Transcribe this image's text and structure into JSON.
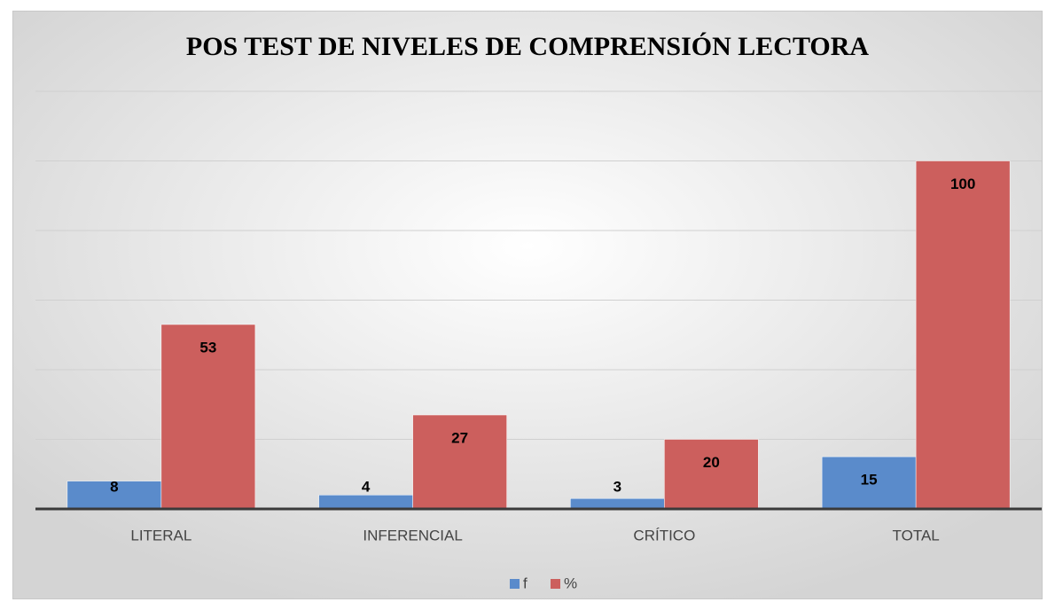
{
  "chart_data": {
    "type": "bar",
    "title": "POS TEST DE NIVELES DE COMPRENSIÓN LECTORA",
    "categories": [
      "LITERAL",
      "INFERENCIAL",
      "CRÍTICO",
      "TOTAL"
    ],
    "series": [
      {
        "name": "f",
        "color": "#5a8bcb",
        "values": [
          8,
          4,
          3,
          15
        ]
      },
      {
        "name": "%",
        "color": "#cc5f5d",
        "values": [
          53,
          27,
          20,
          100
        ]
      }
    ],
    "ylim": [
      0,
      120
    ],
    "yticks": [
      0,
      20,
      40,
      60,
      80,
      100,
      120
    ],
    "grid": true,
    "show_tick_labels": false,
    "legend": "bottom"
  }
}
